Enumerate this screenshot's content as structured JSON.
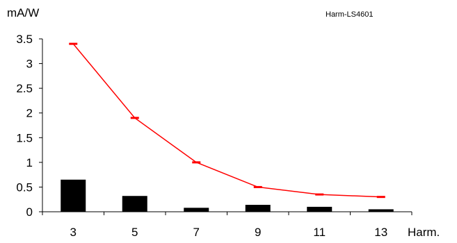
{
  "chart_data": {
    "type": "bar",
    "header_label": "Harm-LS4601",
    "ylabel": "mA/W",
    "xlabel": "Harm.",
    "ylim": [
      0,
      3.5
    ],
    "yticks": [
      0,
      0.5,
      1,
      1.5,
      2,
      2.5,
      3,
      3.5
    ],
    "ytick_labels": [
      "0",
      "0.5",
      "1",
      "1.5",
      "2",
      "2.5",
      "3",
      "3.5"
    ],
    "categories": [
      "3",
      "5",
      "7",
      "9",
      "11",
      "13"
    ],
    "series": [
      {
        "type": "bar",
        "values": [
          0.65,
          0.32,
          0.08,
          0.14,
          0.1,
          0.05
        ],
        "color": "#000000"
      },
      {
        "type": "line",
        "values": [
          3.4,
          1.9,
          1.0,
          0.5,
          0.35,
          0.3
        ],
        "color": "#ff0000",
        "marker": "dash"
      }
    ],
    "grid": false,
    "legend": "none"
  }
}
